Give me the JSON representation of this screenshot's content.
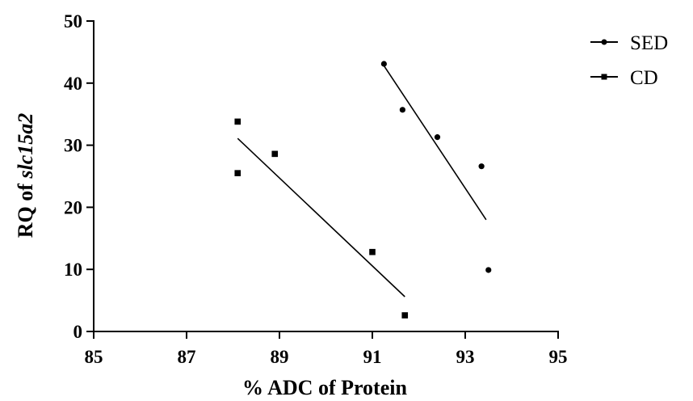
{
  "chart_data": {
    "type": "scatter",
    "xlabel": "% ADC of Protein",
    "ylabel_prefix": "RQ of ",
    "ylabel_gene": "slc15a2",
    "xlim": [
      85,
      95
    ],
    "ylim": [
      0,
      50
    ],
    "x_ticks": [
      85,
      87,
      89,
      91,
      93,
      95
    ],
    "y_ticks": [
      0,
      10,
      20,
      30,
      40,
      50
    ],
    "grid": false,
    "legend_position": "top-right",
    "series": [
      {
        "name": "SED",
        "marker": "circle",
        "color": "#000000",
        "points": [
          {
            "x": 91.25,
            "y": 43.1
          },
          {
            "x": 91.65,
            "y": 35.7
          },
          {
            "x": 92.4,
            "y": 31.3
          },
          {
            "x": 93.35,
            "y": 26.6
          },
          {
            "x": 93.5,
            "y": 9.9
          }
        ],
        "fit_line": [
          {
            "x": 91.25,
            "y": 42.8
          },
          {
            "x": 93.45,
            "y": 18.0
          }
        ]
      },
      {
        "name": "CD",
        "marker": "square",
        "color": "#000000",
        "points": [
          {
            "x": 88.1,
            "y": 33.8
          },
          {
            "x": 88.1,
            "y": 25.5
          },
          {
            "x": 88.9,
            "y": 28.6
          },
          {
            "x": 91.0,
            "y": 12.8
          },
          {
            "x": 91.7,
            "y": 2.6
          }
        ],
        "fit_line": [
          {
            "x": 88.1,
            "y": 31.1
          },
          {
            "x": 91.7,
            "y": 5.6
          }
        ]
      }
    ]
  }
}
